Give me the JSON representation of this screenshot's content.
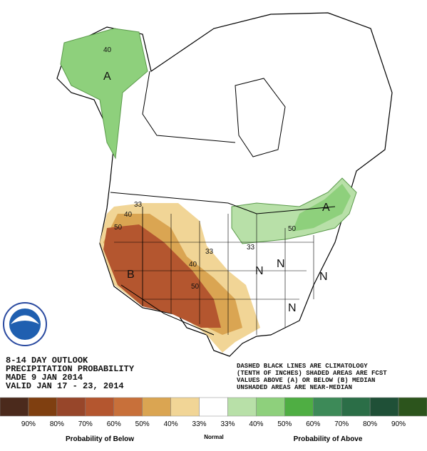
{
  "map": {
    "labels": [
      "A",
      "A",
      "B",
      "N",
      "N",
      "N",
      "N"
    ],
    "contours": [
      "40",
      "33",
      "40",
      "50",
      "33",
      "40",
      "50",
      "33",
      "50"
    ]
  },
  "outlook": {
    "lines": [
      "8-14 DAY OUTLOOK",
      "PRECIPITATION PROBABILITY",
      "MADE  9 JAN 2014",
      "VALID  JAN 17 - 23, 2014"
    ]
  },
  "note": {
    "lines": [
      "DASHED BLACK LINES ARE CLIMATOLOGY",
      "(TENTH OF INCHES) SHADED AREAS ARE FCST",
      "VALUES ABOVE (A) OR BELOW (B) MEDIAN",
      "UNSHADED AREAS ARE NEAR-MEDIAN"
    ]
  },
  "legend": {
    "swatches": [
      "#4b2a1c",
      "#7f3f10",
      "#97462a",
      "#b4562f",
      "#c8703a",
      "#daa552",
      "#f1d596",
      "#ffffff",
      "#b8e0a8",
      "#8ed07c",
      "#4fae43",
      "#3d8a58",
      "#2b6e47",
      "#1f5037",
      "#2c541c"
    ],
    "ticks": [
      "90%",
      "80%",
      "70%",
      "60%",
      "50%",
      "40%",
      "33%",
      "33%",
      "40%",
      "50%",
      "60%",
      "70%",
      "80%",
      "90%"
    ],
    "below": "Probability of Below",
    "normal": "Normal",
    "above": "Probability of Above"
  }
}
